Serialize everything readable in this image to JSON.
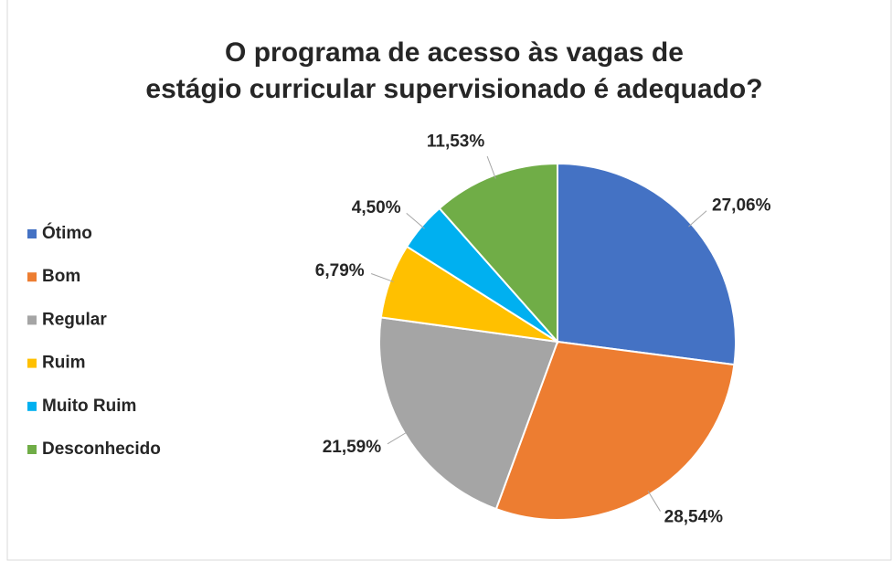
{
  "chart_data": {
    "type": "pie",
    "title": "O programa de acesso às vagas de estágio curricular supervisionado é adequado?",
    "categories": [
      "Ótimo",
      "Bom",
      "Regular",
      "Ruim",
      "Muito Ruim",
      "Desconhecido"
    ],
    "values": [
      27.06,
      28.54,
      21.59,
      6.79,
      4.5,
      11.53
    ],
    "value_labels": [
      "27,06%",
      "28,54%",
      "21,59%",
      "6,79%",
      "4,50%",
      "11,53%"
    ],
    "colors": [
      "#4472c4",
      "#ed7d31",
      "#a5a5a5",
      "#ffc000",
      "#00b0f0",
      "#70ad47"
    ],
    "legend": "left"
  }
}
